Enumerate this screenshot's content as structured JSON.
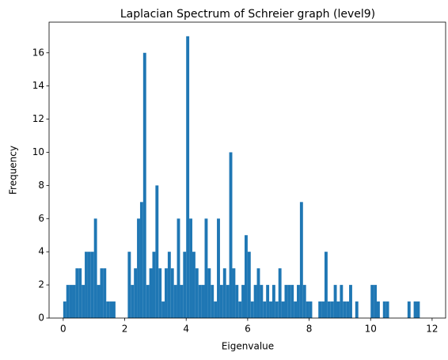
{
  "chart_data": {
    "type": "histogram",
    "title": "Laplacian Spectrum of Schreier graph (level9)",
    "x_label": "Eigenvalue",
    "y_label": "Frequency",
    "color": "#1f77b4",
    "bins": [
      0,
      0.1,
      0.2,
      0.3,
      0.4,
      0.5,
      0.6,
      0.7,
      0.8,
      0.9,
      1,
      1.1,
      1.2,
      1.3,
      1.4,
      1.5,
      1.6,
      1.7,
      1.8,
      1.9,
      2,
      2.1,
      2.2,
      2.3,
      2.4,
      2.5,
      2.6,
      2.7,
      2.8,
      2.9,
      3,
      3.1,
      3.2,
      3.3,
      3.4,
      3.5,
      3.6,
      3.7,
      3.8,
      3.9,
      4,
      4.1,
      4.2,
      4.3,
      4.4,
      4.5,
      4.6,
      4.7,
      4.8,
      4.9,
      5,
      5.1,
      5.2,
      5.3,
      5.4,
      5.5,
      5.6,
      5.7,
      5.8,
      5.9,
      6,
      6.1,
      6.2,
      6.3,
      6.4,
      6.5,
      6.6,
      6.7,
      6.8,
      6.9,
      7,
      7.1,
      7.2,
      7.3,
      7.4,
      7.5,
      7.6,
      7.7,
      7.8,
      7.9,
      8,
      8.1,
      8.2,
      8.3,
      8.4,
      8.5,
      8.6,
      8.7,
      8.8,
      8.9,
      9,
      9.1,
      9.2,
      9.3,
      9.4,
      9.5,
      9.6,
      9.7,
      9.8,
      9.9,
      10,
      10.1,
      10.2,
      10.3,
      10.4,
      10.5,
      10.6,
      10.7,
      10.8,
      10.9,
      11,
      11.1,
      11.2,
      11.3,
      11.4,
      11.5,
      11.6
    ],
    "values": [
      1,
      2,
      2,
      2,
      3,
      3,
      2,
      4,
      4,
      4,
      6,
      2,
      3,
      3,
      1,
      1,
      1,
      0,
      0,
      0,
      0,
      4,
      2,
      3,
      6,
      7,
      16,
      2,
      3,
      4,
      8,
      3,
      1,
      3,
      4,
      3,
      2,
      6,
      2,
      4,
      17,
      6,
      4,
      3,
      2,
      2,
      6,
      3,
      2,
      1,
      6,
      2,
      3,
      2,
      10,
      3,
      2,
      1,
      2,
      5,
      4,
      1,
      2,
      3,
      2,
      1,
      2,
      1,
      2,
      1,
      3,
      1,
      2,
      2,
      2,
      1,
      2,
      7,
      2,
      1,
      1,
      0,
      0,
      1,
      1,
      4,
      1,
      1,
      2,
      1,
      2,
      1,
      1,
      2,
      0,
      1,
      0,
      0,
      0,
      0,
      2,
      2,
      1,
      0,
      1,
      1,
      0,
      0,
      0,
      0,
      0,
      0,
      1,
      0,
      1,
      1
    ],
    "xlim": [
      -0.46,
      12.44
    ],
    "ylim": [
      0,
      17.85
    ],
    "xticks": [
      0,
      2,
      4,
      6,
      8,
      10,
      12
    ],
    "yticks": [
      0,
      2,
      4,
      6,
      8,
      10,
      12,
      14,
      16
    ]
  }
}
